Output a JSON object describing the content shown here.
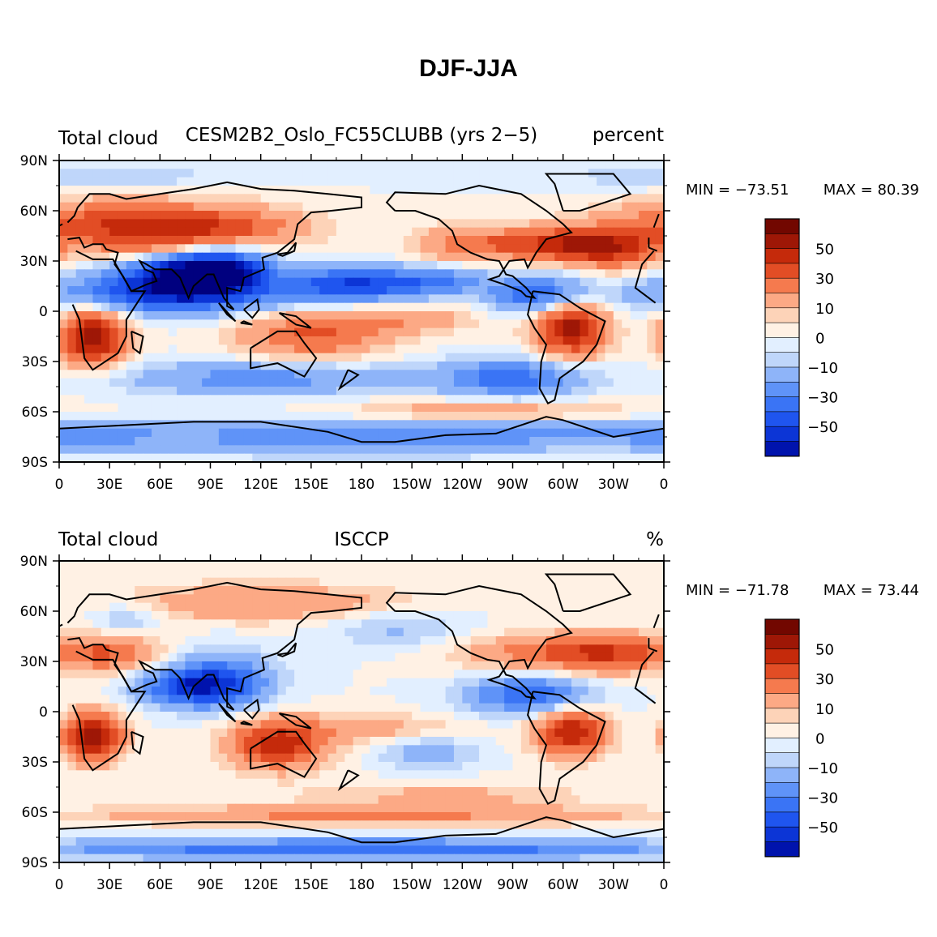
{
  "title": "DJF-JJA",
  "colors": {
    "levels": [
      "#00007f",
      "#0013ad",
      "#0c35d6",
      "#1f55ef",
      "#3a74f5",
      "#5f93f8",
      "#8eb4f9",
      "#bfd6fa",
      "#e2efff",
      "#fff1e4",
      "#fdd3b8",
      "#fca985",
      "#f57a4e",
      "#e24d25",
      "#c52a0b",
      "#9e1706",
      "#720700"
    ],
    "background": "#ffffff",
    "coast": "#000000"
  },
  "panels": [
    {
      "left_label": "Total cloud",
      "center_label": "CESM2B2_Oslo_FC55CLUBB (yrs 2−5)",
      "right_label": "percent",
      "min_label": "MIN = −73.51",
      "max_label": "MAX =   80.39",
      "min": -73.51,
      "max": 80.39
    },
    {
      "left_label": "Total cloud",
      "center_label": "ISCCP",
      "right_label": "%",
      "min_label": "MIN = −71.78",
      "max_label": "MAX =   73.44",
      "min": -71.78,
      "max": 73.44
    }
  ],
  "chart_data": {
    "type": "heatmap",
    "title": "DJF-JJA",
    "xlabel": "",
    "ylabel": "",
    "x_ticks": [
      "0",
      "30E",
      "60E",
      "90E",
      "120E",
      "150E",
      "180",
      "150W",
      "120W",
      "90W",
      "60W",
      "30W",
      "0"
    ],
    "y_ticks": [
      "90N",
      "60N",
      "30N",
      "0",
      "30S",
      "60S",
      "90S"
    ],
    "xlim": [
      0,
      360
    ],
    "ylim": [
      -90,
      90
    ],
    "colorbar_levels": [
      -70,
      -60,
      -50,
      -40,
      -30,
      -20,
      -10,
      -5,
      0,
      5,
      10,
      20,
      30,
      40,
      50,
      60,
      70
    ],
    "colorbar_labels": [
      "50",
      "30",
      "10",
      "0",
      "−10",
      "−30",
      "−50"
    ],
    "units": [
      "percent",
      "%"
    ],
    "panels": [
      {
        "name": "CESM2B2_Oslo_FC55CLUBB (yrs 2−5)",
        "min": -73.51,
        "max": 80.39
      },
      {
        "name": "ISCCP",
        "min": -71.78,
        "max": 73.44
      }
    ]
  }
}
